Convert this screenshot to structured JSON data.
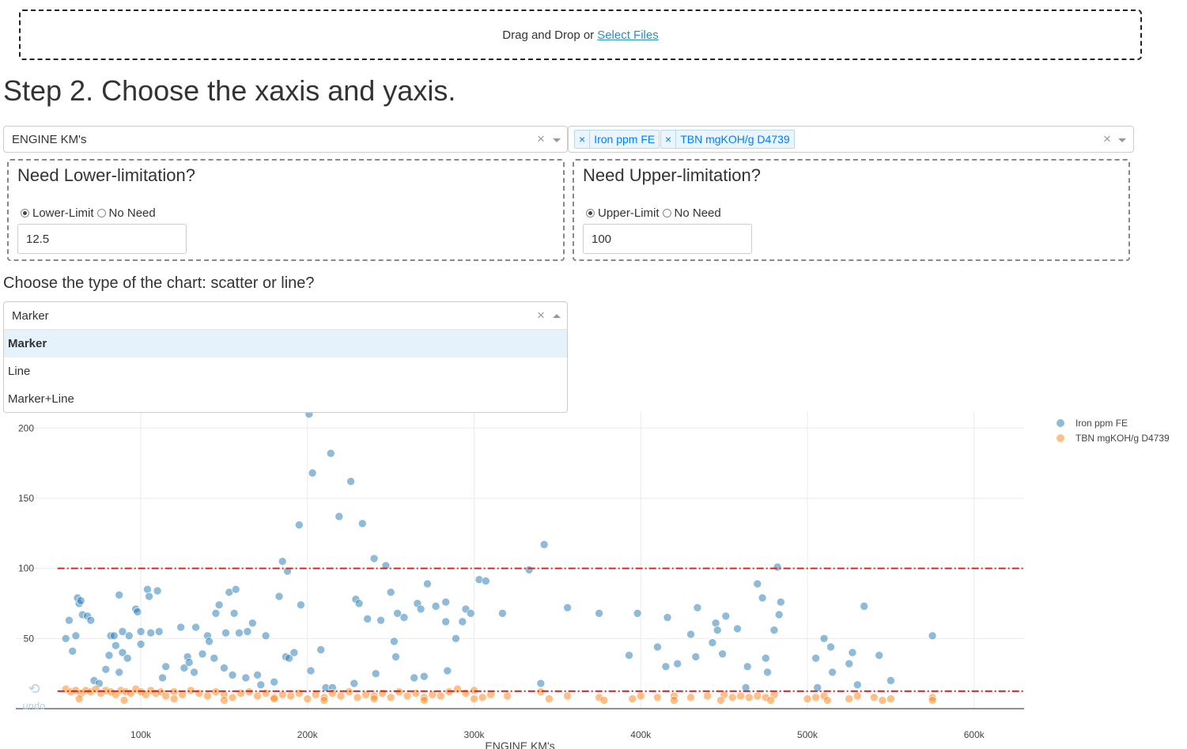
{
  "upload": {
    "prompt": "Drag and Drop or",
    "link": "Select Files"
  },
  "step_title": "Step 2. Choose the xaxis and yaxis.",
  "xaxis_select": {
    "value": "ENGINE KM's",
    "clear": "×"
  },
  "yaxis_select": {
    "tags": [
      "Iron ppm FE",
      "TBN mgKOH/g D4739"
    ],
    "tag_remove": "×",
    "clear": "×"
  },
  "lower_limit": {
    "title": "Need Lower-limitation?",
    "option_limit": "Lower-Limit",
    "option_none": "No Need",
    "selected": "Lower-Limit",
    "value": "12.5"
  },
  "upper_limit": {
    "title": "Need Upper-limitation?",
    "option_limit": "Upper-Limit",
    "option_none": "No Need",
    "selected": "Upper-Limit",
    "value": "100"
  },
  "chart_type": {
    "label": "Choose the type of the chart: scatter or line?",
    "value": "Marker",
    "clear": "×",
    "options": [
      "Marker",
      "Line",
      "Marker+Line"
    ],
    "highlighted": "Marker"
  },
  "undo": {
    "icon": "undo-icon",
    "label": "undo"
  },
  "colors": {
    "series1": "#1f77b4",
    "series2": "#ff7f0e",
    "limit_line": "#d62728",
    "link": "#2c8fbf"
  },
  "chart_data": {
    "type": "scatter",
    "xlabel": "ENGINE KM's",
    "ylabel": "",
    "xlim": [
      25000,
      630000
    ],
    "ylim": [
      0,
      212
    ],
    "xticks": [
      100000,
      200000,
      300000,
      400000,
      500000,
      600000
    ],
    "xtick_labels": [
      "100k",
      "200k",
      "300k",
      "400k",
      "500k",
      "600k"
    ],
    "yticks": [
      50,
      100,
      150,
      200
    ],
    "grid": true,
    "legend_position": "top-right",
    "limit_lines": [
      {
        "name": "Upper-Limit",
        "y": 100,
        "x_range": [
          50000,
          630000
        ]
      },
      {
        "name": "Lower-Limit",
        "y": 12.5,
        "x_range": [
          50000,
          630000
        ]
      }
    ],
    "series": [
      {
        "name": "Iron ppm FE",
        "color": "#1f77b4",
        "points": [
          [
            55000,
            50
          ],
          [
            57000,
            63
          ],
          [
            59000,
            41
          ],
          [
            61000,
            52
          ],
          [
            62000,
            79
          ],
          [
            63000,
            75
          ],
          [
            64000,
            77
          ],
          [
            65000,
            67
          ],
          [
            68000,
            66
          ],
          [
            70000,
            63
          ],
          [
            72000,
            20
          ],
          [
            75000,
            18
          ],
          [
            79000,
            28
          ],
          [
            81000,
            38
          ],
          [
            82000,
            52
          ],
          [
            84000,
            52
          ],
          [
            85000,
            45
          ],
          [
            87000,
            26
          ],
          [
            87000,
            81
          ],
          [
            89000,
            55
          ],
          [
            89000,
            40
          ],
          [
            92000,
            36
          ],
          [
            93000,
            52
          ],
          [
            97000,
            71
          ],
          [
            98000,
            69
          ],
          [
            100000,
            55
          ],
          [
            100000,
            46
          ],
          [
            104000,
            85
          ],
          [
            105000,
            80
          ],
          [
            106000,
            54
          ],
          [
            110000,
            84
          ],
          [
            111000,
            55
          ],
          [
            113000,
            22
          ],
          [
            115000,
            30
          ],
          [
            124000,
            58
          ],
          [
            126000,
            29
          ],
          [
            128000,
            37
          ],
          [
            129000,
            33
          ],
          [
            132000,
            26
          ],
          [
            133000,
            58
          ],
          [
            137000,
            39
          ],
          [
            140000,
            52
          ],
          [
            141000,
            48
          ],
          [
            144000,
            36
          ],
          [
            145000,
            68
          ],
          [
            147000,
            74
          ],
          [
            150000,
            29
          ],
          [
            151000,
            54
          ],
          [
            153000,
            83
          ],
          [
            155000,
            24
          ],
          [
            156000,
            68
          ],
          [
            157000,
            85
          ],
          [
            159000,
            54
          ],
          [
            163000,
            22
          ],
          [
            164000,
            55
          ],
          [
            167000,
            61
          ],
          [
            170000,
            24
          ],
          [
            172000,
            17
          ],
          [
            175000,
            52
          ],
          [
            180000,
            19
          ],
          [
            183000,
            80
          ],
          [
            185000,
            105
          ],
          [
            187000,
            37
          ],
          [
            188000,
            98
          ],
          [
            189000,
            36
          ],
          [
            192000,
            40
          ],
          [
            195000,
            131
          ],
          [
            196000,
            74
          ],
          [
            201000,
            210
          ],
          [
            202000,
            27
          ],
          [
            203000,
            168
          ],
          [
            208000,
            42
          ],
          [
            211000,
            15
          ],
          [
            214000,
            182
          ],
          [
            215000,
            15
          ],
          [
            219000,
            137
          ],
          [
            226000,
            162
          ],
          [
            228000,
            18
          ],
          [
            229000,
            78
          ],
          [
            231000,
            75
          ],
          [
            233000,
            132
          ],
          [
            236000,
            64
          ],
          [
            240000,
            107
          ],
          [
            241000,
            25
          ],
          [
            244000,
            63
          ],
          [
            247000,
            102
          ],
          [
            250000,
            83
          ],
          [
            252000,
            48
          ],
          [
            253000,
            37
          ],
          [
            254000,
            68
          ],
          [
            258000,
            65
          ],
          [
            264000,
            22
          ],
          [
            266000,
            75
          ],
          [
            268000,
            71
          ],
          [
            270000,
            23
          ],
          [
            272000,
            89
          ],
          [
            277000,
            73
          ],
          [
            283000,
            76
          ],
          [
            283000,
            62
          ],
          [
            284000,
            27
          ],
          [
            289000,
            50
          ],
          [
            293000,
            62
          ],
          [
            295000,
            71
          ],
          [
            298000,
            68
          ],
          [
            303000,
            92
          ],
          [
            307000,
            91
          ],
          [
            317000,
            68
          ],
          [
            333000,
            99
          ],
          [
            340000,
            18
          ],
          [
            342000,
            117
          ],
          [
            356000,
            72
          ],
          [
            375000,
            68
          ],
          [
            393000,
            38
          ],
          [
            398000,
            68
          ],
          [
            410000,
            44
          ],
          [
            415000,
            30
          ],
          [
            416000,
            65
          ],
          [
            422000,
            32
          ],
          [
            430000,
            53
          ],
          [
            433000,
            37
          ],
          [
            434000,
            72
          ],
          [
            443000,
            47
          ],
          [
            445000,
            61
          ],
          [
            446000,
            56
          ],
          [
            449000,
            39
          ],
          [
            451000,
            66
          ],
          [
            458000,
            57
          ],
          [
            463000,
            15
          ],
          [
            464000,
            30
          ],
          [
            470000,
            89
          ],
          [
            473000,
            79
          ],
          [
            475000,
            36
          ],
          [
            476000,
            26
          ],
          [
            480000,
            56
          ],
          [
            482000,
            101
          ],
          [
            483000,
            67
          ],
          [
            484000,
            76
          ],
          [
            505000,
            36
          ],
          [
            506000,
            15
          ],
          [
            510000,
            50
          ],
          [
            514000,
            44
          ],
          [
            515000,
            26
          ],
          [
            525000,
            32
          ],
          [
            527000,
            40
          ],
          [
            530000,
            17
          ],
          [
            534000,
            73
          ],
          [
            543000,
            38
          ],
          [
            550000,
            20
          ],
          [
            575000,
            52
          ]
        ]
      },
      {
        "name": "TBN mgKOH/g D4739",
        "color": "#ff7f0e",
        "points": [
          [
            55000,
            14
          ],
          [
            58000,
            12
          ],
          [
            61000,
            13
          ],
          [
            64000,
            11
          ],
          [
            67000,
            13
          ],
          [
            70000,
            12
          ],
          [
            73000,
            14
          ],
          [
            76000,
            11
          ],
          [
            79000,
            13
          ],
          [
            82000,
            12
          ],
          [
            85000,
            10
          ],
          [
            88000,
            13
          ],
          [
            91000,
            12
          ],
          [
            94000,
            11
          ],
          [
            97000,
            14
          ],
          [
            100000,
            12
          ],
          [
            103000,
            10
          ],
          [
            106000,
            13
          ],
          [
            109000,
            11
          ],
          [
            112000,
            12
          ],
          [
            115000,
            9
          ],
          [
            120000,
            12
          ],
          [
            125000,
            10
          ],
          [
            130000,
            13
          ],
          [
            135000,
            11
          ],
          [
            140000,
            9
          ],
          [
            145000,
            12
          ],
          [
            150000,
            10
          ],
          [
            155000,
            8
          ],
          [
            160000,
            11
          ],
          [
            165000,
            12
          ],
          [
            170000,
            9
          ],
          [
            175000,
            11
          ],
          [
            180000,
            8
          ],
          [
            185000,
            10
          ],
          [
            190000,
            9
          ],
          [
            195000,
            11
          ],
          [
            200000,
            7
          ],
          [
            205000,
            10
          ],
          [
            210000,
            8
          ],
          [
            215000,
            11
          ],
          [
            220000,
            9
          ],
          [
            225000,
            12
          ],
          [
            230000,
            8
          ],
          [
            235000,
            10
          ],
          [
            240000,
            9
          ],
          [
            245000,
            11
          ],
          [
            250000,
            8
          ],
          [
            255000,
            12
          ],
          [
            260000,
            9
          ],
          [
            265000,
            11
          ],
          [
            270000,
            8
          ],
          [
            275000,
            10
          ],
          [
            280000,
            9
          ],
          [
            285000,
            12
          ],
          [
            290000,
            14
          ],
          [
            295000,
            11
          ],
          [
            300000,
            13
          ],
          [
            305000,
            8
          ],
          [
            310000,
            10
          ],
          [
            320000,
            9
          ],
          [
            340000,
            12
          ],
          [
            356000,
            9
          ],
          [
            375000,
            8
          ],
          [
            395000,
            7
          ],
          [
            400000,
            9
          ],
          [
            410000,
            8
          ],
          [
            420000,
            9
          ],
          [
            430000,
            8
          ],
          [
            440000,
            9
          ],
          [
            450000,
            10
          ],
          [
            455000,
            8
          ],
          [
            460000,
            9
          ],
          [
            465000,
            8
          ],
          [
            470000,
            9
          ],
          [
            475000,
            8
          ],
          [
            480000,
            10
          ],
          [
            500000,
            7
          ],
          [
            505000,
            8
          ],
          [
            510000,
            9
          ],
          [
            525000,
            7
          ],
          [
            530000,
            9
          ],
          [
            540000,
            8
          ],
          [
            550000,
            7
          ],
          [
            575000,
            8
          ],
          [
            63000,
            7
          ],
          [
            90000,
            6
          ],
          [
            120000,
            7
          ],
          [
            150000,
            6
          ],
          [
            180000,
            7
          ],
          [
            210000,
            6
          ],
          [
            240000,
            7
          ],
          [
            270000,
            6
          ],
          [
            300000,
            7
          ],
          [
            345000,
            7
          ],
          [
            378000,
            6
          ],
          [
            420000,
            6
          ],
          [
            448000,
            6
          ],
          [
            478000,
            6
          ],
          [
            512000,
            6
          ],
          [
            545000,
            6
          ],
          [
            575000,
            6
          ]
        ]
      }
    ]
  }
}
